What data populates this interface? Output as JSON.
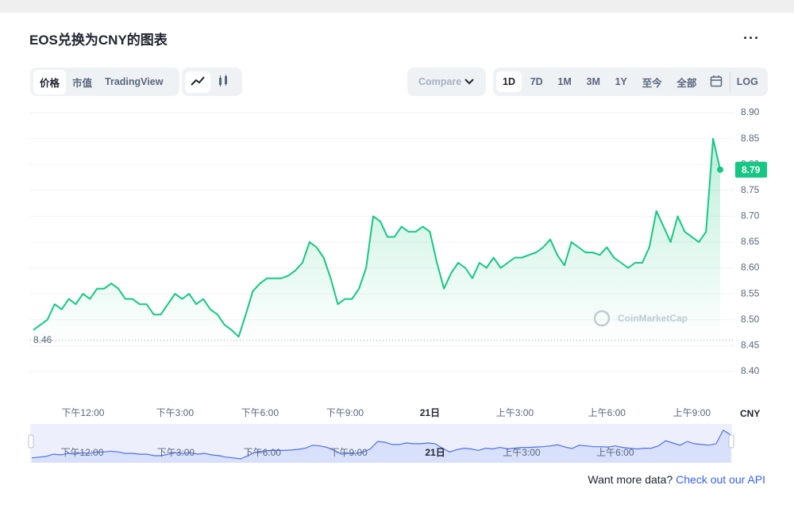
{
  "header": {
    "title": "EOS兑换为CNY的图表"
  },
  "toolbar": {
    "tabs": [
      "价格",
      "市值",
      "TradingView"
    ],
    "compare": "Compare",
    "ranges": [
      "1D",
      "7D",
      "1M",
      "3M",
      "1Y",
      "至今",
      "全部"
    ],
    "log": "LOG"
  },
  "chart_data": {
    "type": "line",
    "categories": [
      null,
      null,
      null,
      null,
      null,
      null,
      null,
      "下午12:00",
      null,
      null,
      null,
      null,
      null,
      null,
      null,
      null,
      null,
      null,
      null,
      null,
      "下午3:00",
      null,
      null,
      null,
      null,
      null,
      null,
      null,
      null,
      null,
      null,
      null,
      "下午6:00",
      null,
      null,
      null,
      null,
      null,
      null,
      null,
      null,
      null,
      null,
      null,
      "下午9:00",
      null,
      null,
      null,
      null,
      null,
      null,
      null,
      null,
      null,
      null,
      null,
      "21日",
      null,
      null,
      null,
      null,
      null,
      null,
      null,
      null,
      null,
      null,
      null,
      "上午3:00",
      null,
      null,
      null,
      null,
      null,
      null,
      null,
      null,
      null,
      null,
      null,
      null,
      "上午6:00",
      null,
      null,
      null,
      null,
      null,
      null,
      null,
      null,
      null,
      null,
      null,
      "上午9:00",
      null,
      null,
      null,
      null
    ],
    "series": [
      {
        "name": "EOS",
        "color": "#16c784",
        "values": [
          8.48,
          8.49,
          8.5,
          8.53,
          8.52,
          8.54,
          8.53,
          8.55,
          8.54,
          8.56,
          8.56,
          8.57,
          8.56,
          8.54,
          8.54,
          8.53,
          8.53,
          8.51,
          8.51,
          8.53,
          8.55,
          8.54,
          8.55,
          8.53,
          8.54,
          8.52,
          8.51,
          8.49,
          8.48,
          8.467,
          8.51,
          8.555,
          8.57,
          8.58,
          8.58,
          8.58,
          8.585,
          8.595,
          8.61,
          8.65,
          8.64,
          8.62,
          8.58,
          8.53,
          8.54,
          8.54,
          8.56,
          8.6,
          8.7,
          8.69,
          8.66,
          8.66,
          8.68,
          8.67,
          8.67,
          8.68,
          8.67,
          8.61,
          8.56,
          8.59,
          8.61,
          8.6,
          8.58,
          8.61,
          8.6,
          8.62,
          8.6,
          8.61,
          8.62,
          8.62,
          8.625,
          8.63,
          8.64,
          8.655,
          8.625,
          8.605,
          8.65,
          8.64,
          8.63,
          8.63,
          8.625,
          8.64,
          8.62,
          8.61,
          8.6,
          8.61,
          8.61,
          8.64,
          8.71,
          8.68,
          8.65,
          8.7,
          8.67,
          8.66,
          8.65,
          8.67,
          8.85,
          8.79
        ]
      }
    ],
    "ylim": [
      8.34,
      8.9
    ],
    "yticks": [
      {
        "value": 8.9,
        "label": "8.90"
      },
      8.85,
      {
        "value": 8.8,
        "label": "8.80"
      },
      8.75,
      {
        "value": 8.7,
        "label": "8.70"
      },
      8.65,
      {
        "value": 8.6,
        "label": "8.60"
      },
      8.55,
      {
        "value": 8.5,
        "label": "8.50"
      },
      8.45,
      {
        "value": 8.4,
        "label": "8.40"
      }
    ],
    "grid": true,
    "reference": 8.46,
    "unit": "CNY",
    "watermark": "CoinMarketCap"
  },
  "footer": {
    "question": "Want more data?",
    "link": "Check out our API"
  }
}
